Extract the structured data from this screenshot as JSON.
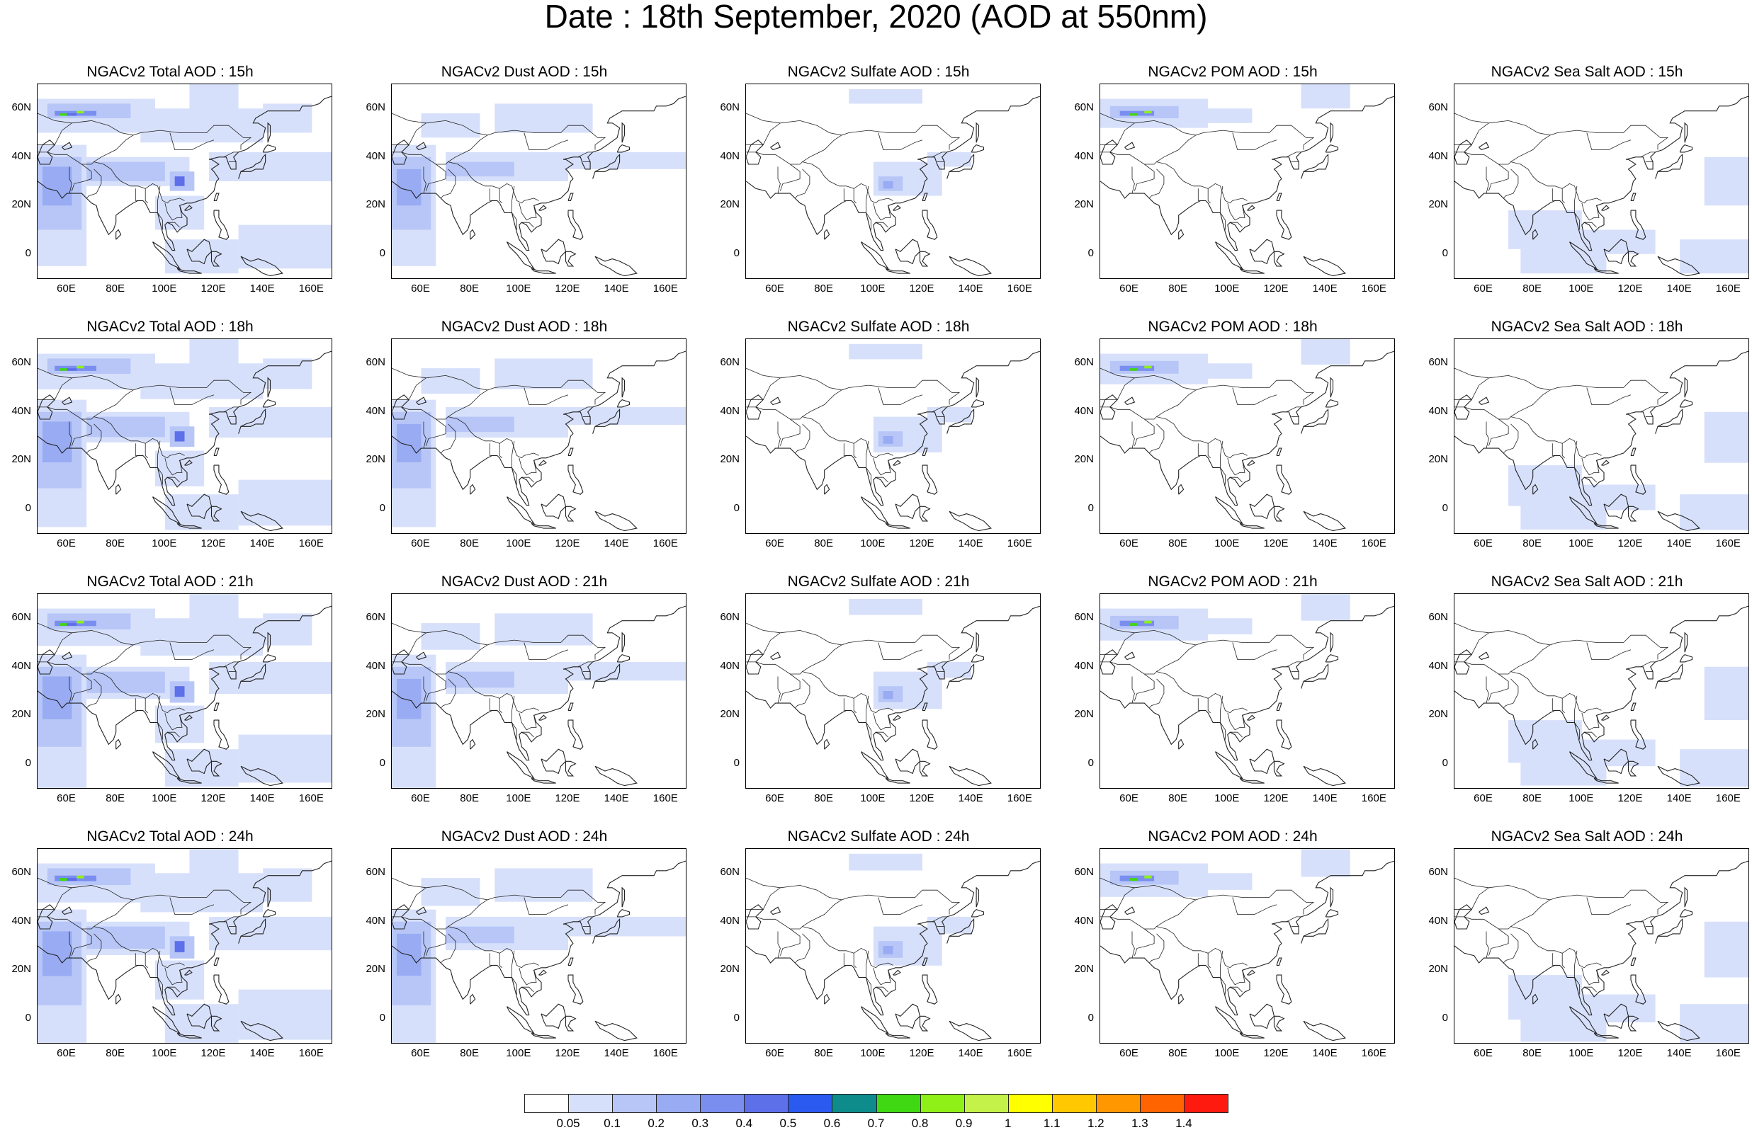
{
  "title": "Date : 18th September, 2020 (AOD at 550nm)",
  "panel_titles": [
    [
      "NGACv2 Total AOD : 15h",
      "NGACv2 Dust AOD : 15h",
      "NGACv2 Sulfate AOD : 15h",
      "NGACv2 POM AOD : 15h",
      "NGACv2 Sea Salt AOD : 15h"
    ],
    [
      "NGACv2 Total AOD : 18h",
      "NGACv2 Dust AOD : 18h",
      "NGACv2 Sulfate AOD : 18h",
      "NGACv2 POM AOD : 18h",
      "NGACv2 Sea Salt AOD : 18h"
    ],
    [
      "NGACv2 Total AOD : 21h",
      "NGACv2 Dust AOD : 21h",
      "NGACv2 Sulfate AOD : 21h",
      "NGACv2 POM AOD : 21h",
      "NGACv2 Sea Salt AOD : 21h"
    ],
    [
      "NGACv2 Total AOD : 24h",
      "NGACv2 Dust AOD : 24h",
      "NGACv2 Sulfate AOD : 24h",
      "NGACv2 POM AOD : 24h",
      "NGACv2 Sea Salt  AOD : 24h"
    ]
  ],
  "lat_labels": [
    "60N",
    "40N",
    "20N",
    "0"
  ],
  "lon_labels": [
    "60E",
    "80E",
    "100E",
    "120E",
    "140E",
    "160E"
  ],
  "map_extent": {
    "lon": [
      48,
      168
    ],
    "lat": [
      -10,
      70
    ]
  },
  "colorbar": {
    "labels": [
      "0.05",
      "0.1",
      "0.2",
      "0.3",
      "0.4",
      "0.5",
      "0.6",
      "0.7",
      "0.8",
      "0.9",
      "1",
      "1.1",
      "1.2",
      "1.3",
      "1.4"
    ],
    "colors": [
      "#ffffff",
      "#d7e0fb",
      "#b7c6f7",
      "#98abf3",
      "#7a8ef0",
      "#5e6fea",
      "#2a5af0",
      "#0e8c8c",
      "#3fd813",
      "#8ff018",
      "#c4f248",
      "#ffff00",
      "#ffc800",
      "#ff9800",
      "#ff6400",
      "#ff1a10"
    ]
  }
}
